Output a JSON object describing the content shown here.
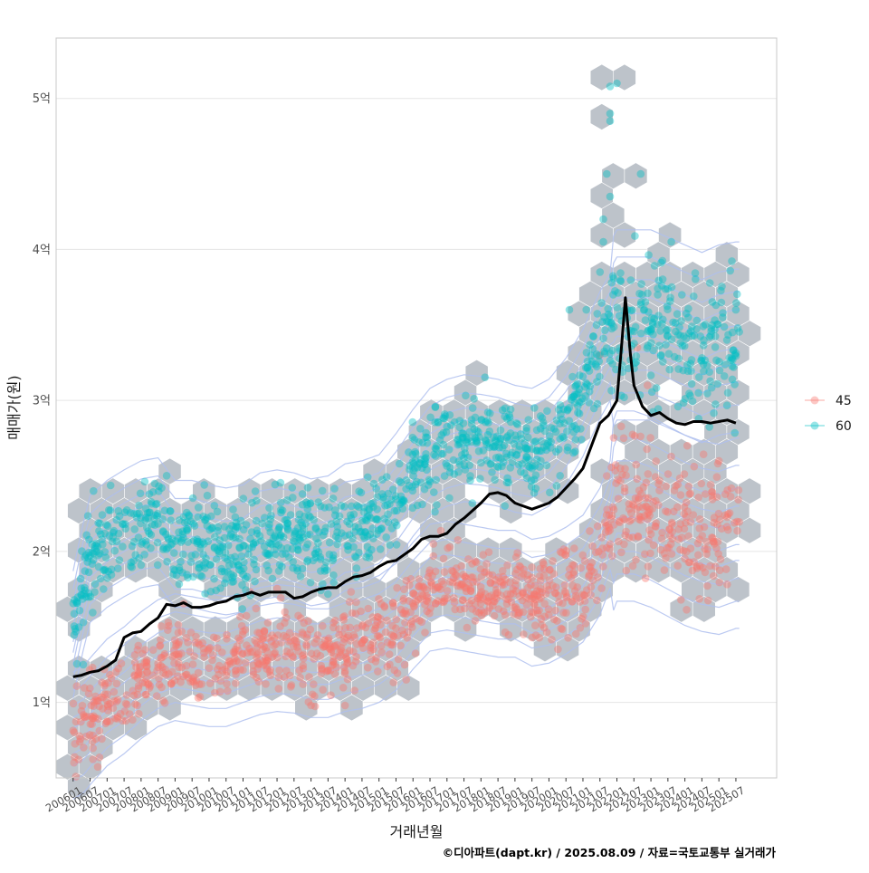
{
  "chart_data": {
    "type": "scatter",
    "xlabel": "거래년월",
    "ylabel": "매매가(원)",
    "caption": "©디아파트(dapt.kr) / 2025.08.09 / 자료=국토교통부 실거래가",
    "xlim": [
      2005.5,
      2026.7
    ],
    "ylim": [
      0.5,
      5.4
    ],
    "grid": true,
    "legend_position": "right",
    "y_ticks": [
      {
        "value": 1,
        "label": "1억"
      },
      {
        "value": 2,
        "label": "2억"
      },
      {
        "value": 3,
        "label": "3억"
      },
      {
        "value": 4,
        "label": "4억"
      },
      {
        "value": 5,
        "label": "5억"
      }
    ],
    "x_ticks": [
      {
        "value": 2006.0,
        "label": "200601"
      },
      {
        "value": 2006.5,
        "label": "200607"
      },
      {
        "value": 2007.0,
        "label": "200701"
      },
      {
        "value": 2007.5,
        "label": "200707"
      },
      {
        "value": 2008.0,
        "label": "200801"
      },
      {
        "value": 2008.5,
        "label": "200807"
      },
      {
        "value": 2009.0,
        "label": "200901"
      },
      {
        "value": 2009.5,
        "label": "200907"
      },
      {
        "value": 2010.0,
        "label": "201001"
      },
      {
        "value": 2010.5,
        "label": "201007"
      },
      {
        "value": 2011.0,
        "label": "201101"
      },
      {
        "value": 2011.5,
        "label": "201107"
      },
      {
        "value": 2012.0,
        "label": "201201"
      },
      {
        "value": 2012.5,
        "label": "201207"
      },
      {
        "value": 2013.0,
        "label": "201301"
      },
      {
        "value": 2013.5,
        "label": "201307"
      },
      {
        "value": 2014.0,
        "label": "201401"
      },
      {
        "value": 2014.5,
        "label": "201407"
      },
      {
        "value": 2015.0,
        "label": "201501"
      },
      {
        "value": 2015.5,
        "label": "201507"
      },
      {
        "value": 2016.0,
        "label": "201601"
      },
      {
        "value": 2016.5,
        "label": "201607"
      },
      {
        "value": 2017.0,
        "label": "201701"
      },
      {
        "value": 2017.5,
        "label": "201707"
      },
      {
        "value": 2018.0,
        "label": "201801"
      },
      {
        "value": 2018.5,
        "label": "201807"
      },
      {
        "value": 2019.0,
        "label": "201901"
      },
      {
        "value": 2019.5,
        "label": "201907"
      },
      {
        "value": 2020.0,
        "label": "202001"
      },
      {
        "value": 2020.5,
        "label": "202007"
      },
      {
        "value": 2021.0,
        "label": "202101"
      },
      {
        "value": 2021.5,
        "label": "202107"
      },
      {
        "value": 2022.0,
        "label": "202201"
      },
      {
        "value": 2022.5,
        "label": "202207"
      },
      {
        "value": 2023.0,
        "label": "202301"
      },
      {
        "value": 2023.5,
        "label": "202307"
      },
      {
        "value": 2024.0,
        "label": "202401"
      },
      {
        "value": 2024.5,
        "label": "202407"
      },
      {
        "value": 2025.0,
        "label": "202501"
      },
      {
        "value": 2025.5,
        "label": "202507"
      }
    ],
    "legend": [
      {
        "name": "45",
        "color": "#F8766D"
      },
      {
        "name": "60",
        "color": "#00BFC4"
      }
    ],
    "colors": {
      "hexbin": "#BDC3CA",
      "contour": "#AFC0EE",
      "average_line": "#000000",
      "grid": "#E5E5E5",
      "panel_border": "#C8C8C8"
    },
    "series": [
      {
        "name": "45",
        "trend": [
          [
            2006.0,
            0.78
          ],
          [
            2006.3,
            0.82
          ],
          [
            2006.6,
            0.9
          ],
          [
            2007.0,
            1.0
          ],
          [
            2007.5,
            1.08
          ],
          [
            2008.0,
            1.18
          ],
          [
            2008.5,
            1.26
          ],
          [
            2009.0,
            1.3
          ],
          [
            2009.5,
            1.28
          ],
          [
            2010.0,
            1.26
          ],
          [
            2010.5,
            1.26
          ],
          [
            2011.0,
            1.3
          ],
          [
            2011.5,
            1.34
          ],
          [
            2012.0,
            1.36
          ],
          [
            2012.5,
            1.35
          ],
          [
            2013.0,
            1.32
          ],
          [
            2013.5,
            1.32
          ],
          [
            2014.0,
            1.36
          ],
          [
            2014.5,
            1.38
          ],
          [
            2015.0,
            1.42
          ],
          [
            2015.5,
            1.5
          ],
          [
            2016.0,
            1.64
          ],
          [
            2016.5,
            1.76
          ],
          [
            2017.0,
            1.78
          ],
          [
            2017.5,
            1.76
          ],
          [
            2018.0,
            1.74
          ],
          [
            2018.5,
            1.72
          ],
          [
            2019.0,
            1.72
          ],
          [
            2019.5,
            1.66
          ],
          [
            2020.0,
            1.68
          ],
          [
            2020.5,
            1.74
          ],
          [
            2021.0,
            1.82
          ],
          [
            2021.5,
            2.0
          ],
          [
            2022.0,
            2.3
          ],
          [
            2022.5,
            2.3
          ],
          [
            2023.0,
            2.26
          ],
          [
            2023.5,
            2.2
          ],
          [
            2024.0,
            2.14
          ],
          [
            2024.5,
            2.1
          ],
          [
            2025.0,
            2.08
          ],
          [
            2025.5,
            2.12
          ]
        ],
        "spread": 0.13,
        "outliers": [
          [
            2021.7,
            2.5
          ],
          [
            2022.1,
            2.55
          ],
          [
            2021.5,
            3.3
          ],
          [
            2022.6,
            3.35
          ],
          [
            2022.9,
            3.1
          ],
          [
            2025.0,
            2.6
          ],
          [
            2014.0,
            0.98
          ],
          [
            2013.0,
            0.98
          ],
          [
            2024.6,
            2.38
          ],
          [
            2022.2,
            2.75
          ],
          [
            2016.6,
            2.05
          ],
          [
            2015.8,
            1.15
          ]
        ]
      },
      {
        "name": "60",
        "trend": [
          [
            2006.0,
            1.45
          ],
          [
            2006.25,
            1.72
          ],
          [
            2006.5,
            1.95
          ],
          [
            2007.0,
            2.05
          ],
          [
            2007.5,
            2.12
          ],
          [
            2008.0,
            2.18
          ],
          [
            2008.5,
            2.2
          ],
          [
            2009.0,
            2.05
          ],
          [
            2009.5,
            2.05
          ],
          [
            2010.0,
            2.02
          ],
          [
            2010.5,
            2.0
          ],
          [
            2011.0,
            2.02
          ],
          [
            2011.5,
            2.1
          ],
          [
            2012.0,
            2.12
          ],
          [
            2012.5,
            2.1
          ],
          [
            2013.0,
            2.06
          ],
          [
            2013.5,
            2.08
          ],
          [
            2014.0,
            2.16
          ],
          [
            2014.5,
            2.18
          ],
          [
            2015.0,
            2.22
          ],
          [
            2015.5,
            2.36
          ],
          [
            2016.0,
            2.52
          ],
          [
            2016.5,
            2.66
          ],
          [
            2017.0,
            2.72
          ],
          [
            2017.5,
            2.75
          ],
          [
            2018.0,
            2.74
          ],
          [
            2018.5,
            2.72
          ],
          [
            2019.0,
            2.68
          ],
          [
            2019.5,
            2.66
          ],
          [
            2020.0,
            2.72
          ],
          [
            2020.5,
            2.86
          ],
          [
            2021.0,
            3.05
          ],
          [
            2021.5,
            3.3
          ],
          [
            2022.0,
            3.5
          ],
          [
            2022.5,
            3.5
          ],
          [
            2023.0,
            3.5
          ],
          [
            2023.5,
            3.45
          ],
          [
            2024.0,
            3.4
          ],
          [
            2024.5,
            3.35
          ],
          [
            2025.0,
            3.4
          ],
          [
            2025.5,
            3.42
          ]
        ],
        "spread": 0.15,
        "outliers": [
          [
            2021.8,
            5.08
          ],
          [
            2022.0,
            5.1
          ],
          [
            2021.8,
            4.9
          ],
          [
            2021.8,
            4.85
          ],
          [
            2021.7,
            4.5
          ],
          [
            2021.8,
            4.35
          ],
          [
            2021.6,
            4.2
          ],
          [
            2021.6,
            4.05
          ],
          [
            2021.5,
            3.85
          ],
          [
            2022.7,
            4.5
          ],
          [
            2023.6,
            4.05
          ],
          [
            2023.2,
            3.7
          ],
          [
            2024.1,
            3.55
          ],
          [
            2024.8,
            3.5
          ],
          [
            2025.5,
            3.6
          ],
          [
            2025.4,
            3.45
          ],
          [
            2006.6,
            2.4
          ],
          [
            2008.4,
            2.45
          ],
          [
            2020.6,
            3.6
          ],
          [
            2021.4,
            3.5
          ],
          [
            2021.1,
            3.6
          ],
          [
            2006.3,
            1.25
          ],
          [
            2023.3,
            3.3
          ],
          [
            2024.4,
            3.05
          ]
        ]
      }
    ],
    "average_line": [
      [
        2006.0,
        1.17
      ],
      [
        2006.25,
        1.18
      ],
      [
        2006.5,
        1.2
      ],
      [
        2006.75,
        1.21
      ],
      [
        2007.0,
        1.24
      ],
      [
        2007.25,
        1.28
      ],
      [
        2007.5,
        1.43
      ],
      [
        2007.75,
        1.46
      ],
      [
        2008.0,
        1.47
      ],
      [
        2008.25,
        1.52
      ],
      [
        2008.5,
        1.56
      ],
      [
        2008.75,
        1.65
      ],
      [
        2009.0,
        1.64
      ],
      [
        2009.25,
        1.66
      ],
      [
        2009.5,
        1.63
      ],
      [
        2009.75,
        1.63
      ],
      [
        2010.0,
        1.64
      ],
      [
        2010.25,
        1.66
      ],
      [
        2010.5,
        1.67
      ],
      [
        2010.75,
        1.7
      ],
      [
        2011.0,
        1.71
      ],
      [
        2011.25,
        1.73
      ],
      [
        2011.5,
        1.71
      ],
      [
        2011.75,
        1.73
      ],
      [
        2012.0,
        1.73
      ],
      [
        2012.25,
        1.73
      ],
      [
        2012.5,
        1.69
      ],
      [
        2012.75,
        1.7
      ],
      [
        2013.0,
        1.73
      ],
      [
        2013.25,
        1.75
      ],
      [
        2013.5,
        1.76
      ],
      [
        2013.75,
        1.76
      ],
      [
        2014.0,
        1.8
      ],
      [
        2014.25,
        1.83
      ],
      [
        2014.5,
        1.84
      ],
      [
        2014.75,
        1.86
      ],
      [
        2015.0,
        1.9
      ],
      [
        2015.25,
        1.93
      ],
      [
        2015.5,
        1.94
      ],
      [
        2015.75,
        1.98
      ],
      [
        2016.0,
        2.02
      ],
      [
        2016.25,
        2.08
      ],
      [
        2016.5,
        2.1
      ],
      [
        2016.75,
        2.1
      ],
      [
        2017.0,
        2.12
      ],
      [
        2017.25,
        2.18
      ],
      [
        2017.5,
        2.22
      ],
      [
        2017.75,
        2.27
      ],
      [
        2018.0,
        2.32
      ],
      [
        2018.25,
        2.38
      ],
      [
        2018.5,
        2.39
      ],
      [
        2018.75,
        2.37
      ],
      [
        2019.0,
        2.32
      ],
      [
        2019.25,
        2.3
      ],
      [
        2019.5,
        2.28
      ],
      [
        2019.75,
        2.3
      ],
      [
        2020.0,
        2.32
      ],
      [
        2020.25,
        2.36
      ],
      [
        2020.5,
        2.42
      ],
      [
        2020.75,
        2.48
      ],
      [
        2021.0,
        2.55
      ],
      [
        2021.25,
        2.7
      ],
      [
        2021.5,
        2.85
      ],
      [
        2021.75,
        2.9
      ],
      [
        2022.0,
        3.0
      ],
      [
        2022.15,
        3.4
      ],
      [
        2022.25,
        3.68
      ],
      [
        2022.4,
        3.3
      ],
      [
        2022.5,
        3.1
      ],
      [
        2022.75,
        2.96
      ],
      [
        2023.0,
        2.9
      ],
      [
        2023.25,
        2.92
      ],
      [
        2023.5,
        2.88
      ],
      [
        2023.75,
        2.85
      ],
      [
        2024.0,
        2.84
      ],
      [
        2024.25,
        2.86
      ],
      [
        2024.5,
        2.86
      ],
      [
        2024.75,
        2.85
      ],
      [
        2025.0,
        2.86
      ],
      [
        2025.25,
        2.87
      ],
      [
        2025.5,
        2.85
      ]
    ]
  }
}
